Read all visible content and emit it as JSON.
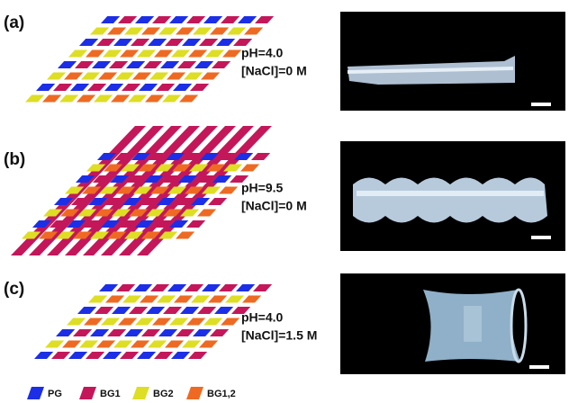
{
  "panels": [
    {
      "label": "(a)",
      "conditions": [
        "pH=4.0",
        "[NaCl]=0 M"
      ]
    },
    {
      "label": "(b)",
      "conditions": [
        "pH=9.5",
        "[NaCl]=0 M"
      ]
    },
    {
      "label": "(c)",
      "conditions": [
        "pH=4.0",
        "[NaCl]=1.5 M"
      ]
    }
  ],
  "legend": [
    {
      "label": "PG",
      "color": "#1c2fe6"
    },
    {
      "label": "BG1",
      "color": "#c4175a"
    },
    {
      "label": "BG2",
      "color": "#dede24"
    },
    {
      "label": "BG1,2",
      "color": "#ee6a22"
    }
  ]
}
